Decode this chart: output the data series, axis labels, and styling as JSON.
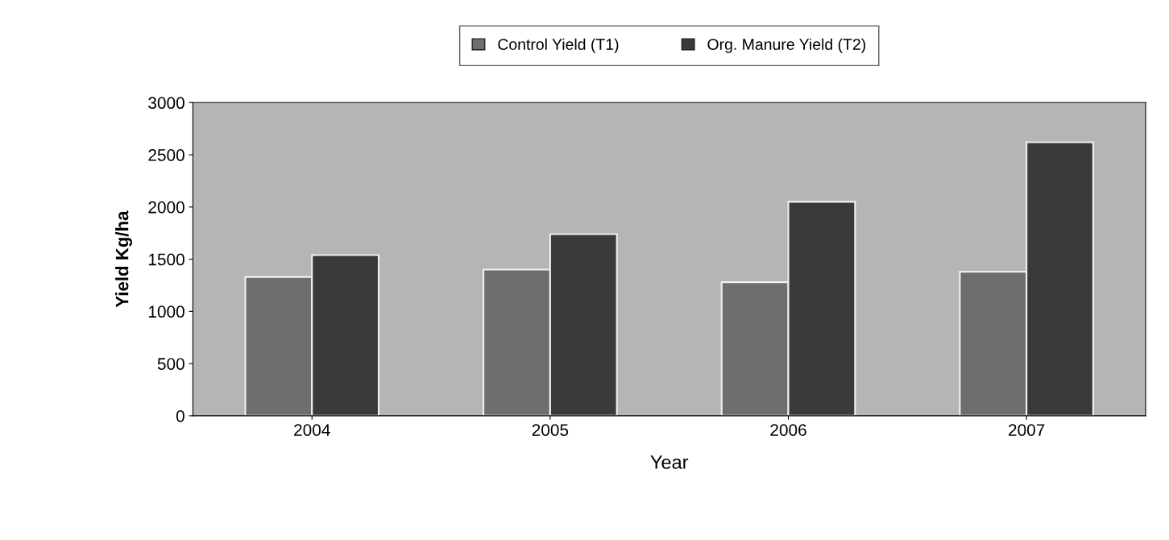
{
  "chart_data": {
    "type": "bar",
    "xlabel": "Year",
    "ylabel": "Yield Kg/ha",
    "categories": [
      "2004",
      "2005",
      "2006",
      "2007"
    ],
    "series": [
      {
        "name": "Control Yield (T1)",
        "color": "#6e6e6e",
        "values": [
          1330,
          1400,
          1280,
          1380
        ]
      },
      {
        "name": "Org. Manure Yield (T2)",
        "color": "#3a3a3a",
        "values": [
          1540,
          1740,
          2050,
          2620
        ]
      }
    ],
    "ylim": [
      0,
      3000
    ],
    "yticks": [
      0,
      500,
      1000,
      1500,
      2000,
      2500,
      3000
    ],
    "grid": false,
    "legend": "top"
  }
}
